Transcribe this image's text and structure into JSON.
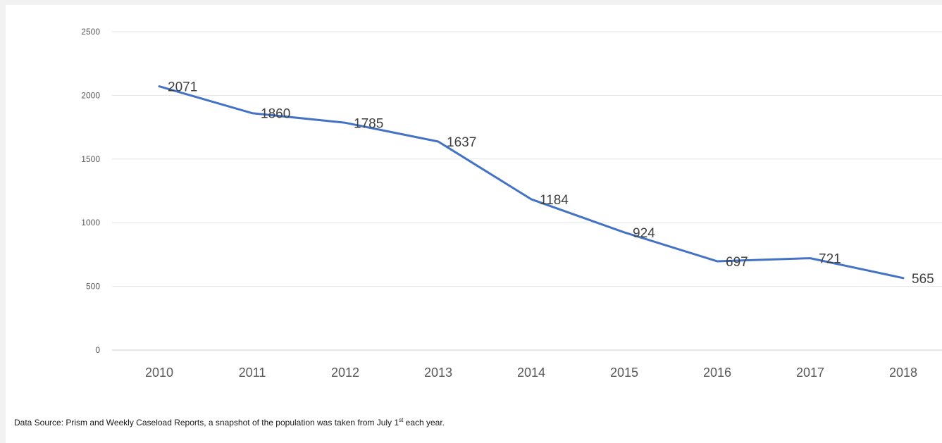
{
  "chart_data": {
    "type": "line",
    "title": "",
    "xlabel": "",
    "ylabel": "",
    "categories": [
      "2010",
      "2011",
      "2012",
      "2013",
      "2014",
      "2015",
      "2016",
      "2017",
      "2018"
    ],
    "series": [
      {
        "values": [
          2071,
          1860,
          1785,
          1637,
          1184,
          924,
          697,
          721,
          565
        ],
        "color": "#4472c4"
      }
    ],
    "data_labels": [
      "2071",
      "1860",
      "1785",
      "1637",
      "1184",
      "924",
      "697",
      "721",
      "565"
    ],
    "ylim": [
      0,
      2500
    ],
    "yticks": [
      0,
      500,
      1000,
      1500,
      2000,
      2500
    ],
    "ytick_labels": [
      "0",
      "500",
      "1000",
      "1500",
      "2000",
      "2500"
    ],
    "grid": true,
    "legend": "none"
  },
  "footnote": {
    "text_before": "Data Source: Prism and Weekly Caseload Reports, a snapshot of the population was taken from July 1",
    "superscript": "st",
    "text_after": " each year."
  }
}
